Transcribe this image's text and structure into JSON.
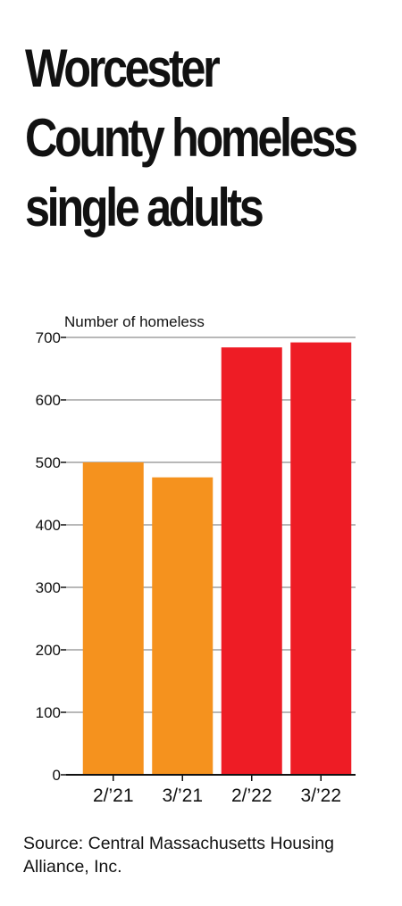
{
  "title_lines": [
    "Worcester",
    "County homeless",
    "single adults"
  ],
  "source": "Source: Central Massachusetts Housing Alliance, Inc.",
  "colors": {
    "orange": "#f5921e",
    "red": "#ee1c25",
    "grid": "#b8b8b8",
    "axis": "#111111"
  },
  "chart_data": {
    "type": "bar",
    "title": "Worcester County homeless single adults",
    "ylabel": "Number of homeless",
    "xlabel": "",
    "categories": [
      "2/’21",
      "3/’21",
      "2/’22",
      "3/’22"
    ],
    "values": [
      500,
      476,
      684,
      692
    ],
    "bar_colors": [
      "#f5921e",
      "#f5921e",
      "#ee1c25",
      "#ee1c25"
    ],
    "ylim": [
      0,
      700
    ],
    "yticks": [
      0,
      100,
      200,
      300,
      400,
      500,
      600,
      700
    ],
    "grid": true,
    "legend": "none"
  }
}
